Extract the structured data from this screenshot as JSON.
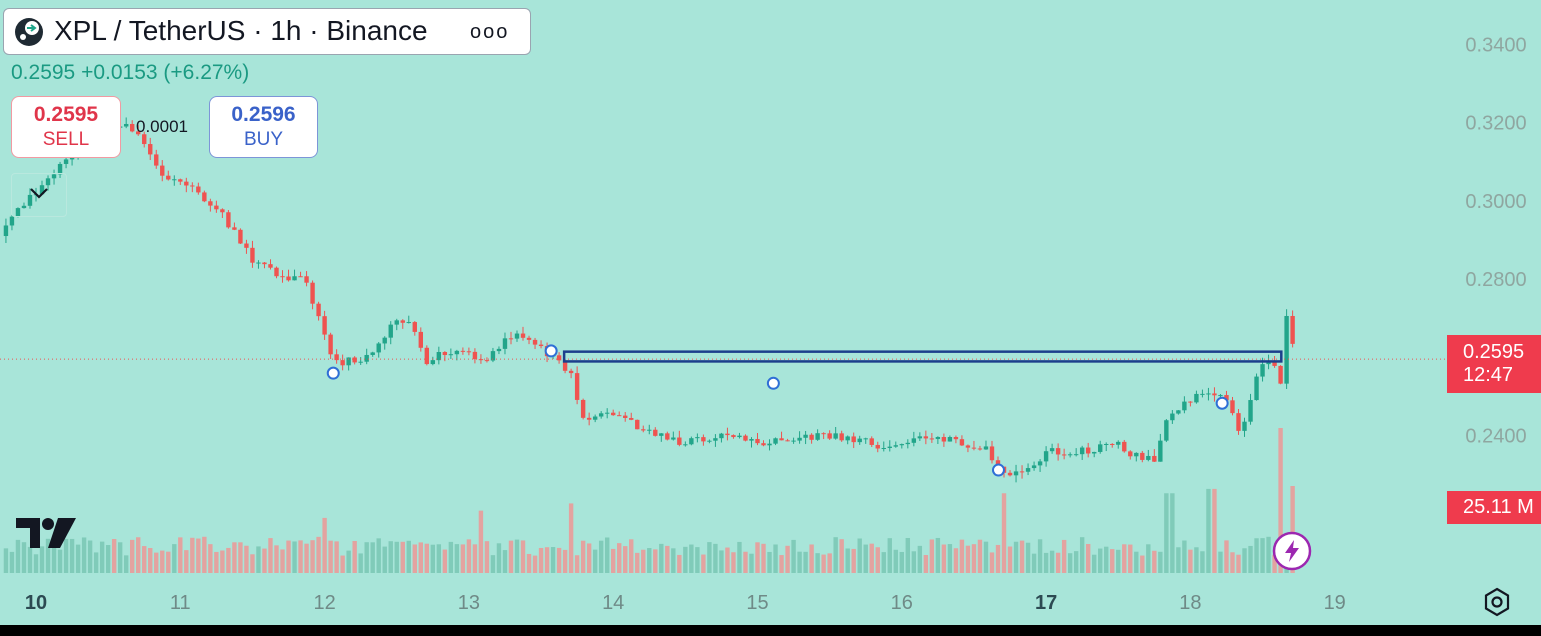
{
  "header": {
    "symbol_title": "XPL / TetherUS · 1h · Binance",
    "more_label": "ooo",
    "last_price": "0.2595",
    "change": "+0.0153",
    "change_pct": "(+6.27%)"
  },
  "trade": {
    "sell_price": "0.2595",
    "sell_label": "SELL",
    "buy_price": "0.2596",
    "buy_label": "BUY",
    "spread": "0.0001"
  },
  "price_tag": {
    "price": "0.2595",
    "countdown": "12:47"
  },
  "volume_tag": {
    "label": "25.11 M"
  },
  "colors": {
    "background": "#a8e5d9",
    "up": "#22a58a",
    "down": "#ef5350",
    "rectangle": "#1c3f8c",
    "marker": "#2f6fd6"
  },
  "icons": {
    "logo": "xpl-logo-icon",
    "collapse": "chevron-down-icon",
    "bolt": "lightning-icon",
    "settings": "hexagon-settings-icon",
    "brand": "tradingview-logo-icon"
  },
  "chart_data": {
    "type": "candlestick",
    "interval": "1h",
    "x_labels": [
      {
        "day": 10,
        "label": "10"
      },
      {
        "day": 11,
        "label": "11"
      },
      {
        "day": 12,
        "label": "12"
      },
      {
        "day": 13,
        "label": "13"
      },
      {
        "day": 14,
        "label": "14"
      },
      {
        "day": 15,
        "label": "15"
      },
      {
        "day": 16,
        "label": "16"
      },
      {
        "day": 17,
        "label": "17"
      },
      {
        "day": 18,
        "label": "18"
      },
      {
        "day": 19,
        "label": "19"
      }
    ],
    "y_ticks": [
      "0.2400",
      "0.2800",
      "0.3000",
      "0.3200",
      "0.3400"
    ],
    "ylim": [
      0.221,
      0.3445
    ],
    "last_price": 0.2595,
    "rectangle": {
      "day_start": 13.66,
      "day_end": 18.63,
      "top": 0.2614,
      "bottom": 0.2589
    },
    "markers": [
      {
        "day": 12.06,
        "price": 0.2559
      },
      {
        "day": 13.57,
        "price": 0.2616
      },
      {
        "day": 15.11,
        "price": 0.2533
      },
      {
        "day": 16.67,
        "price": 0.2311
      },
      {
        "day": 18.22,
        "price": 0.2482
      }
    ],
    "path": [
      {
        "day": 9.75,
        "price": 0.291
      },
      {
        "day": 9.85,
        "price": 0.298
      },
      {
        "day": 10.0,
        "price": 0.302
      },
      {
        "day": 10.3,
        "price": 0.314
      },
      {
        "day": 10.5,
        "price": 0.32
      },
      {
        "day": 10.7,
        "price": 0.318
      },
      {
        "day": 10.9,
        "price": 0.306
      },
      {
        "day": 11.1,
        "price": 0.303
      },
      {
        "day": 11.3,
        "price": 0.296
      },
      {
        "day": 11.5,
        "price": 0.285
      },
      {
        "day": 11.7,
        "price": 0.28
      },
      {
        "day": 11.85,
        "price": 0.281
      },
      {
        "day": 12.0,
        "price": 0.266
      },
      {
        "day": 12.06,
        "price": 0.258
      },
      {
        "day": 12.3,
        "price": 0.26
      },
      {
        "day": 12.5,
        "price": 0.27
      },
      {
        "day": 12.6,
        "price": 0.269
      },
      {
        "day": 12.7,
        "price": 0.259
      },
      {
        "day": 12.9,
        "price": 0.262
      },
      {
        "day": 13.1,
        "price": 0.259
      },
      {
        "day": 13.3,
        "price": 0.266
      },
      {
        "day": 13.55,
        "price": 0.261
      },
      {
        "day": 13.7,
        "price": 0.256
      },
      {
        "day": 13.8,
        "price": 0.243
      },
      {
        "day": 13.95,
        "price": 0.246
      },
      {
        "day": 14.2,
        "price": 0.242
      },
      {
        "day": 14.5,
        "price": 0.238
      },
      {
        "day": 14.8,
        "price": 0.24
      },
      {
        "day": 15.1,
        "price": 0.238
      },
      {
        "day": 15.4,
        "price": 0.24
      },
      {
        "day": 15.7,
        "price": 0.239
      },
      {
        "day": 15.9,
        "price": 0.237
      },
      {
        "day": 16.2,
        "price": 0.24
      },
      {
        "day": 16.45,
        "price": 0.238
      },
      {
        "day": 16.6,
        "price": 0.236
      },
      {
        "day": 16.72,
        "price": 0.229
      },
      {
        "day": 16.88,
        "price": 0.231
      },
      {
        "day": 17.0,
        "price": 0.236
      },
      {
        "day": 17.3,
        "price": 0.236
      },
      {
        "day": 17.5,
        "price": 0.238
      },
      {
        "day": 17.6,
        "price": 0.235
      },
      {
        "day": 17.75,
        "price": 0.234
      },
      {
        "day": 17.85,
        "price": 0.245
      },
      {
        "day": 18.05,
        "price": 0.25
      },
      {
        "day": 18.25,
        "price": 0.249
      },
      {
        "day": 18.35,
        "price": 0.24
      },
      {
        "day": 18.45,
        "price": 0.255
      },
      {
        "day": 18.55,
        "price": 0.26
      },
      {
        "day": 18.6,
        "price": 0.255
      },
      {
        "day": 18.64,
        "price": 0.251
      },
      {
        "day": 18.66,
        "price": 0.272
      },
      {
        "day": 18.69,
        "price": 0.268
      },
      {
        "day": 18.72,
        "price": 0.2595
      }
    ],
    "volume_peaks": [
      {
        "day": 12.0,
        "fraction": 0.38
      },
      {
        "day": 13.1,
        "fraction": 0.43
      },
      {
        "day": 13.7,
        "fraction": 0.48
      },
      {
        "day": 16.7,
        "fraction": 0.55
      },
      {
        "day": 17.85,
        "fraction": 0.55
      },
      {
        "day": 18.15,
        "fraction": 0.58
      },
      {
        "day": 18.64,
        "fraction": 1.0
      },
      {
        "day": 18.7,
        "fraction": 0.6
      }
    ]
  }
}
